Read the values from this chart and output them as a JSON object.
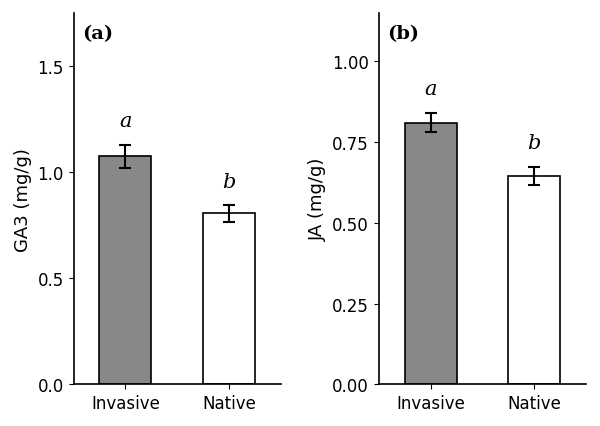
{
  "panel_a": {
    "label": "(a)",
    "ylabel": "GA3 (mg/g)",
    "categories": [
      "Invasive",
      "Native"
    ],
    "values": [
      1.075,
      0.805
    ],
    "errors": [
      0.055,
      0.038
    ],
    "bar_colors": [
      "#888888",
      "#ffffff"
    ],
    "bar_edgecolors": [
      "#000000",
      "#000000"
    ],
    "sig_labels": [
      "a",
      "b"
    ],
    "ylim": [
      0,
      1.75
    ],
    "yticks": [
      0.0,
      0.5,
      1.0,
      1.5
    ],
    "yticklabels": [
      "0.0",
      "0.5",
      "1.0",
      "1.5"
    ]
  },
  "panel_b": {
    "label": "(b)",
    "ylabel": "JA (mg/g)",
    "categories": [
      "Invasive",
      "Native"
    ],
    "values": [
      0.81,
      0.645
    ],
    "errors": [
      0.03,
      0.028
    ],
    "bar_colors": [
      "#888888",
      "#ffffff"
    ],
    "bar_edgecolors": [
      "#000000",
      "#000000"
    ],
    "sig_labels": [
      "a",
      "b"
    ],
    "ylim": [
      0,
      1.15
    ],
    "yticks": [
      0.0,
      0.25,
      0.5,
      0.75,
      1.0
    ],
    "yticklabels": [
      "0.00",
      "0.25",
      "0.50",
      "0.75",
      "1.00"
    ]
  },
  "bar_width": 0.5,
  "font_size": 12,
  "label_font_size": 13,
  "sig_font_size": 15,
  "panel_label_font_size": 14,
  "background_color": "#ffffff",
  "errorbar_capsize": 4,
  "errorbar_linewidth": 1.5,
  "errorbar_capthick": 1.5
}
